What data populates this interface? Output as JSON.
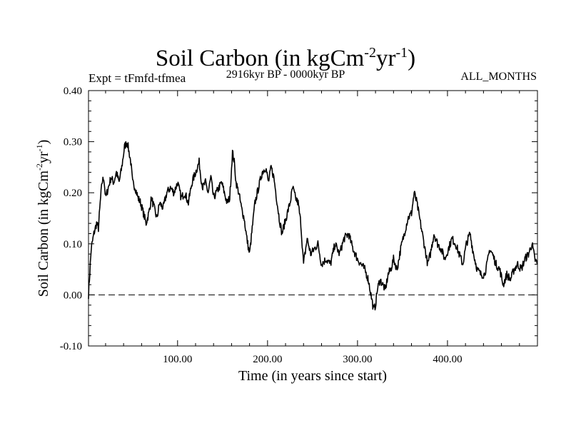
{
  "chart_data": {
    "type": "line",
    "title": "Soil Carbon (in kgCm",
    "title_units": {
      "sup1": "-2",
      "mid": "yr",
      "sup2": "-1",
      "close": ")"
    },
    "experiment_label": "Expt = tFmfd-tfmea",
    "period_label": "2916kyr BP - 0000kyr BP",
    "months_label": "ALL_MONTHS",
    "xlabel": "Time (in years since start)",
    "ylabel": "Soil Carbon (in kgCm",
    "ylabel_units": {
      "sup1": "-2",
      "mid": "yr",
      "sup2": "-1",
      "close": ")"
    },
    "xlim": [
      1,
      500
    ],
    "ylim": [
      -0.1,
      0.4
    ],
    "x_ticks": [
      {
        "value": 100,
        "label": "100.00"
      },
      {
        "value": 200,
        "label": "200.00"
      },
      {
        "value": 300,
        "label": "300.00"
      },
      {
        "value": 400,
        "label": "400.00"
      }
    ],
    "y_ticks": [
      {
        "value": -0.1,
        "label": "-0.10"
      },
      {
        "value": 0.0,
        "label": "0.00"
      },
      {
        "value": 0.1,
        "label": "0.10"
      },
      {
        "value": 0.2,
        "label": "0.20"
      },
      {
        "value": 0.3,
        "label": "0.30"
      },
      {
        "value": 0.4,
        "label": "0.40"
      }
    ],
    "reference_line": {
      "y": 0.0,
      "style": "dashed"
    },
    "series": [
      {
        "name": "Soil Carbon",
        "x": [
          1,
          4,
          7,
          10,
          12,
          14,
          16,
          18,
          20,
          23,
          26,
          29,
          32,
          35,
          38,
          41,
          44,
          46,
          48,
          50,
          53,
          56,
          59,
          62,
          65,
          68,
          71,
          74,
          77,
          80,
          84,
          88,
          92,
          96,
          100,
          104,
          108,
          112,
          116,
          120,
          124,
          126,
          128,
          131,
          134,
          137,
          140,
          143,
          146,
          149,
          152,
          155,
          158,
          161,
          163,
          165,
          168,
          171,
          174,
          177,
          180,
          183,
          186,
          190,
          194,
          198,
          201,
          204,
          207,
          210,
          213,
          216,
          219,
          222,
          225,
          228,
          231,
          234,
          237,
          240,
          244,
          248,
          252,
          256,
          260,
          265,
          270,
          275,
          280,
          285,
          290,
          295,
          300,
          304,
          308,
          312,
          316,
          318,
          320,
          322,
          325,
          328,
          331,
          334,
          337,
          340,
          344,
          348,
          352,
          356,
          360,
          363,
          366,
          369,
          372,
          375,
          378,
          381,
          385,
          389,
          393,
          397,
          401,
          405,
          409,
          413,
          417,
          421,
          425,
          429,
          433,
          437,
          441,
          444,
          447,
          450,
          454,
          458,
          462,
          466,
          470,
          474,
          478,
          482,
          486,
          490,
          494,
          497,
          500
        ],
        "y": [
          0.0,
          0.09,
          0.12,
          0.14,
          0.13,
          0.18,
          0.22,
          0.23,
          0.19,
          0.21,
          0.23,
          0.22,
          0.24,
          0.22,
          0.25,
          0.29,
          0.3,
          0.28,
          0.26,
          0.22,
          0.21,
          0.19,
          0.18,
          0.16,
          0.14,
          0.16,
          0.19,
          0.17,
          0.15,
          0.18,
          0.17,
          0.2,
          0.21,
          0.2,
          0.22,
          0.19,
          0.2,
          0.18,
          0.22,
          0.24,
          0.26,
          0.23,
          0.21,
          0.22,
          0.2,
          0.23,
          0.19,
          0.2,
          0.21,
          0.22,
          0.2,
          0.18,
          0.19,
          0.28,
          0.26,
          0.22,
          0.2,
          0.17,
          0.15,
          0.11,
          0.08,
          0.13,
          0.18,
          0.21,
          0.24,
          0.25,
          0.22,
          0.25,
          0.23,
          0.19,
          0.15,
          0.12,
          0.14,
          0.16,
          0.18,
          0.21,
          0.19,
          0.18,
          0.14,
          0.06,
          0.11,
          0.08,
          0.09,
          0.1,
          0.06,
          0.07,
          0.06,
          0.1,
          0.08,
          0.11,
          0.12,
          0.09,
          0.07,
          0.06,
          0.05,
          0.03,
          -0.01,
          -0.03,
          -0.02,
          0.01,
          0.03,
          0.02,
          0.01,
          0.04,
          0.05,
          0.07,
          0.05,
          0.09,
          0.12,
          0.15,
          0.16,
          0.2,
          0.18,
          0.15,
          0.12,
          0.09,
          0.06,
          0.08,
          0.12,
          0.1,
          0.09,
          0.07,
          0.09,
          0.11,
          0.1,
          0.08,
          0.06,
          0.1,
          0.12,
          0.08,
          0.05,
          0.04,
          0.04,
          0.06,
          0.09,
          0.08,
          0.06,
          0.05,
          0.02,
          0.04,
          0.03,
          0.05,
          0.06,
          0.05,
          0.07,
          0.08,
          0.1,
          0.07,
          0.06
        ]
      }
    ]
  }
}
